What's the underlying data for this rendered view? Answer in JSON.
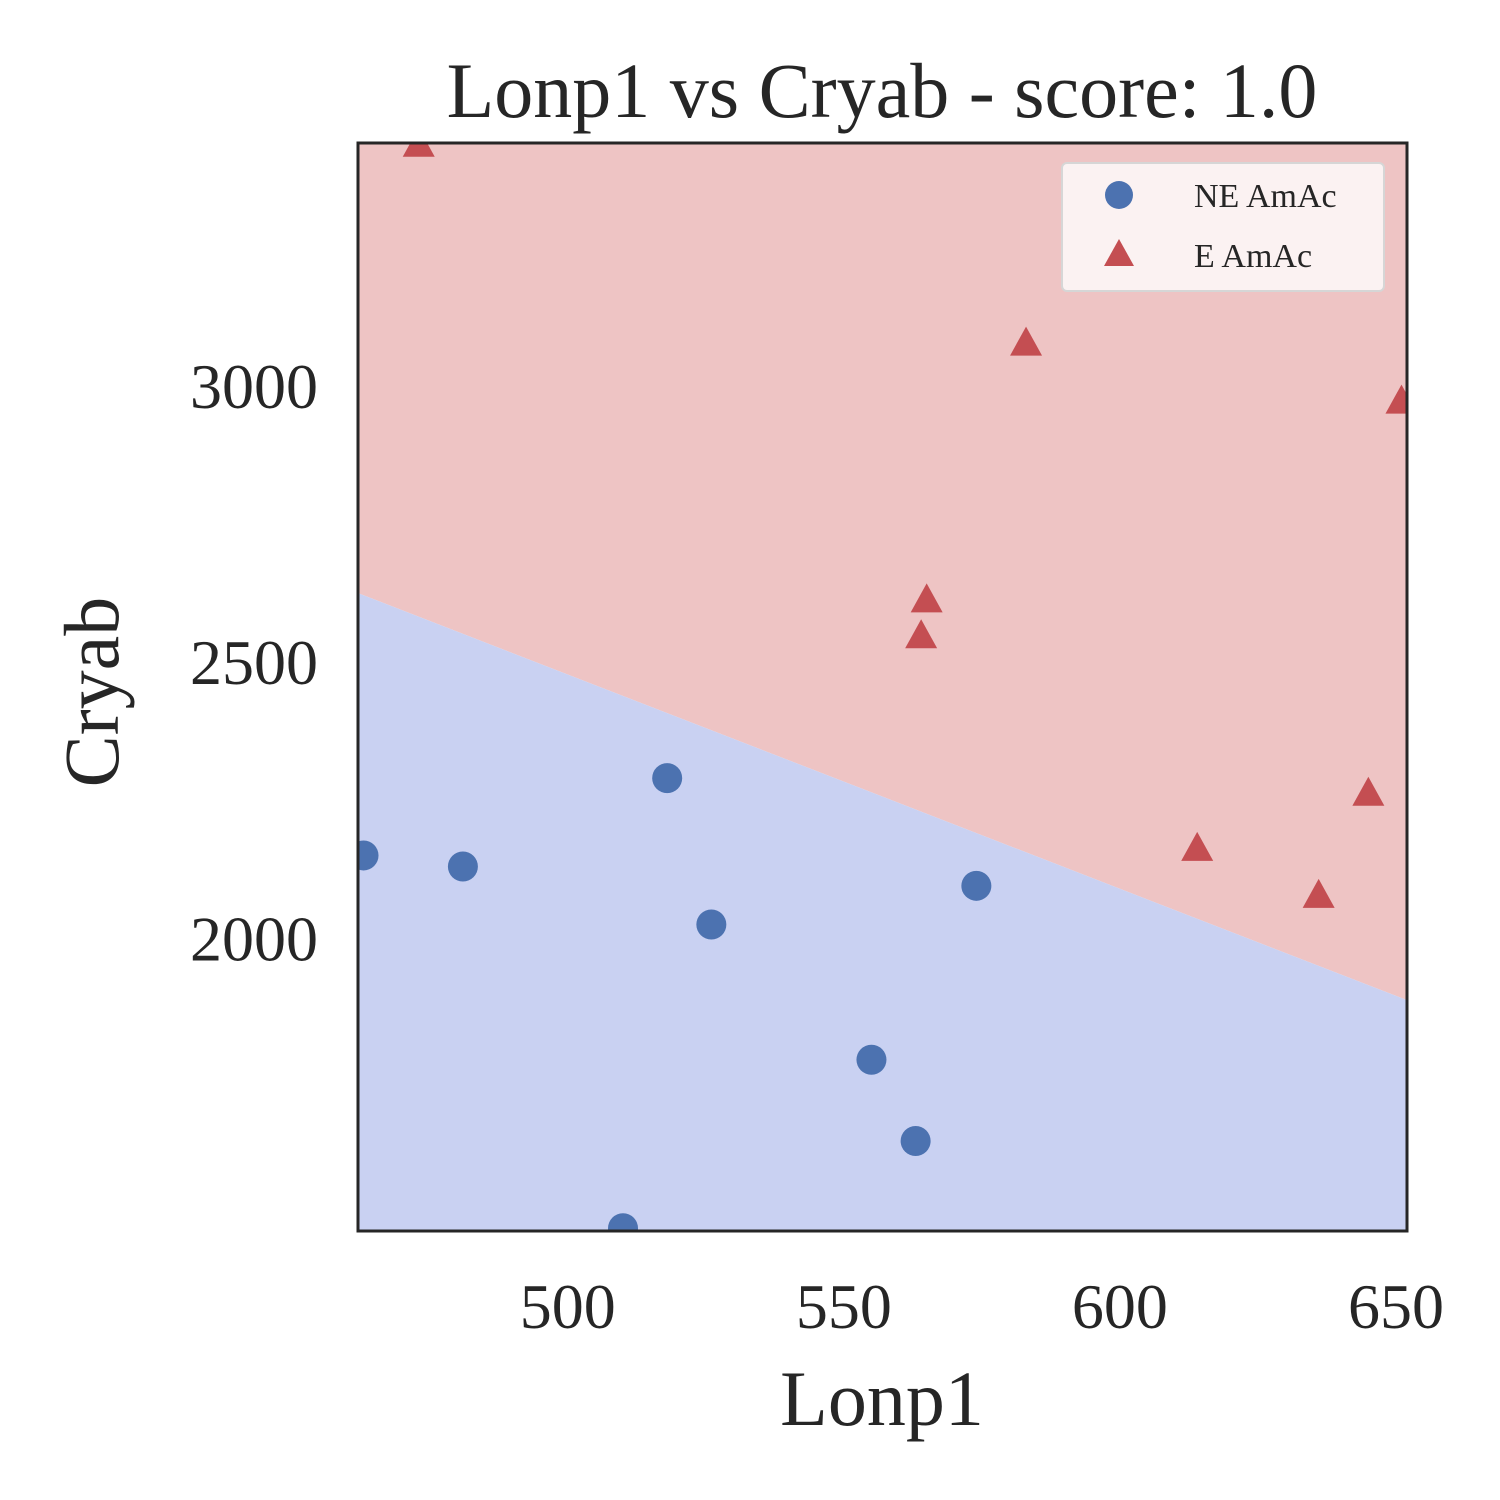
{
  "chart_data": {
    "type": "scatter",
    "title": "Lonp1 vs Cryab - score: 1.0",
    "xlabel": "Lonp1",
    "ylabel": "Cryab",
    "xlim": [
      462,
      652
    ],
    "ylim": [
      1470,
      3440
    ],
    "xticks": [
      500,
      550,
      600,
      650
    ],
    "yticks": [
      2000,
      2500,
      3000
    ],
    "grid": false,
    "legend_position": "top-right",
    "decision_boundary": {
      "points": [
        [
          462,
          2625
        ],
        [
          652,
          1888
        ]
      ],
      "region_below_color": "#c9d1f2",
      "region_above_color": "#eec4c4"
    },
    "series": [
      {
        "name": "NE AmAc",
        "marker": "circle",
        "color": "#4c72b0",
        "x": [
          463,
          481,
          518,
          526,
          510,
          555,
          563,
          574
        ],
        "y": [
          2150,
          2130,
          2290,
          2025,
          1475,
          1780,
          1633,
          2095
        ]
      },
      {
        "name": "E AmAc",
        "marker": "triangle",
        "color": "#c44e52",
        "x": [
          473,
          583,
          565,
          564,
          614,
          636,
          645,
          651
        ],
        "y": [
          3435,
          3075,
          2610,
          2545,
          2160,
          2075,
          2260,
          2970
        ]
      }
    ]
  }
}
